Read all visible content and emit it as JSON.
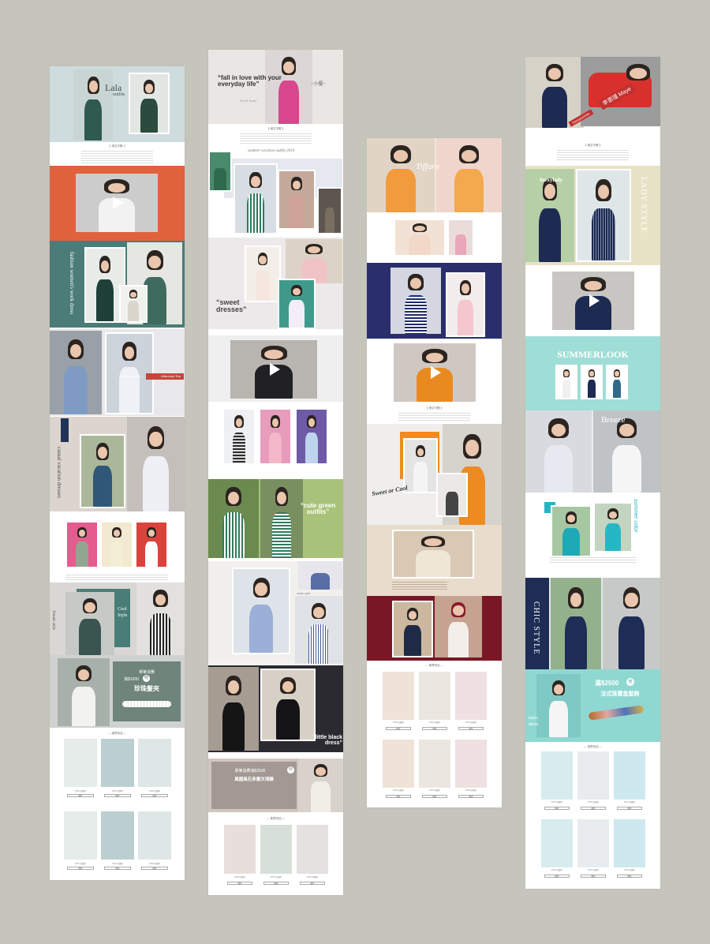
{
  "colors": {
    "board": "#c5c5bc"
  },
  "col1": {
    "title": "Lala",
    "title_sub": "outfits",
    "section_label": "【  細空字體  】",
    "work_title": "fashion women's work dress",
    "what": "What to wear",
    "afternoon_tea": "Afternoon Tea",
    "casual": "casual vacation dresses",
    "cool": "Cool Style",
    "female_style": "female style",
    "promo_line1": "單筆消費",
    "promo_amount": "滿$1000",
    "promo_badge": "贈",
    "promo_gift": "珍珠髮夾",
    "recommend": "— 推薦商品 —",
    "price": "$790  新臺幣",
    "btn": "購買"
  },
  "col2": {
    "quote1": "“fall in love with your everyday life”",
    "name": "~小優~",
    "floral": "Floral Jacket",
    "section_label": "【 細空字體 】",
    "summer": "summer vacation outfits 2019",
    "sweet": "“sweet dresses”",
    "cute": "“cute green outfits”",
    "stripe": "stripe style",
    "little": "“little black dress”",
    "promo_line1": "單筆消費滿$2500",
    "promo_badge": "贈",
    "promo_gift": "異國風石多層次項鍊",
    "recommend": "— 推薦商品 —",
    "price": "$790  新臺幣",
    "btn": "購買"
  },
  "col3": {
    "tiffany": "Tiffany",
    "section_label": "【 細空字體 】",
    "sweet_cool": "Sweet or Cool",
    "recommend": "— 推薦商品 —",
    "price": "$790  新臺幣",
    "btn": "購買"
  },
  "col4": {
    "summer_tag": "#sexysummer",
    "name_tag": "李恩瑾 Maye",
    "section_label": "【 細空字體 】",
    "sexylady": "#sexylady",
    "lady_style": "LADY STYLE",
    "summerlook": "SUMMERLOOK",
    "breeze": "Breeze",
    "summer_color": "summer color",
    "chic": "CHIC STYLE",
    "promo_amount": "滿$2500",
    "promo_badge": "贈",
    "promo_gift": "法式珠寶盒髮飾",
    "maxi": "maxi dress",
    "recommend": "— 推薦商品 —",
    "price": "$790  新臺幣",
    "btn": "購買"
  }
}
